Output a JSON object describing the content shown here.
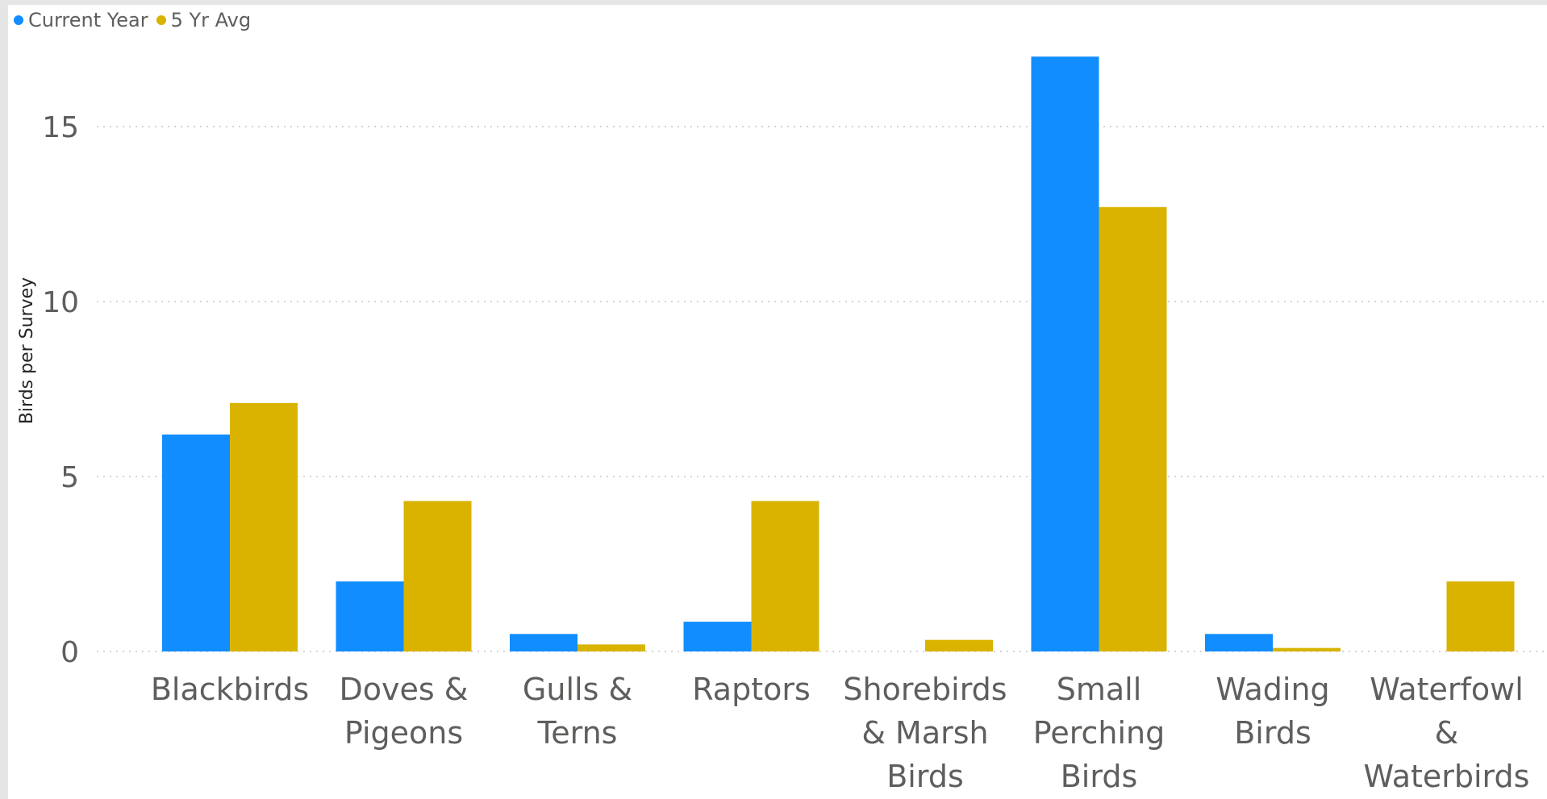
{
  "chart_data": {
    "type": "bar",
    "categories": [
      [
        "Blackbirds"
      ],
      [
        "Doves &",
        "Pigeons"
      ],
      [
        "Gulls &",
        "Terns"
      ],
      [
        "Raptors"
      ],
      [
        "Shorebirds",
        "& Marsh",
        "Birds"
      ],
      [
        "Small",
        "Perching",
        "Birds"
      ],
      [
        "Wading",
        "Birds"
      ],
      [
        "Waterfowl",
        "&",
        "Waterbirds"
      ]
    ],
    "series": [
      {
        "name": "Current Year",
        "color": "#118dff",
        "values": [
          6.2,
          2.0,
          0.5,
          0.85,
          0.0,
          17.0,
          0.5,
          0.0
        ]
      },
      {
        "name": "5 Yr Avg",
        "color": "#d9b300",
        "values": [
          7.1,
          4.3,
          0.2,
          4.3,
          0.33,
          12.7,
          0.1,
          2.0
        ]
      }
    ],
    "ylabel": "Birds per Survey",
    "yticks": [
      0,
      5,
      10,
      15
    ],
    "ylim": [
      0,
      17.5
    ],
    "grid": true,
    "legend": "top-left"
  }
}
